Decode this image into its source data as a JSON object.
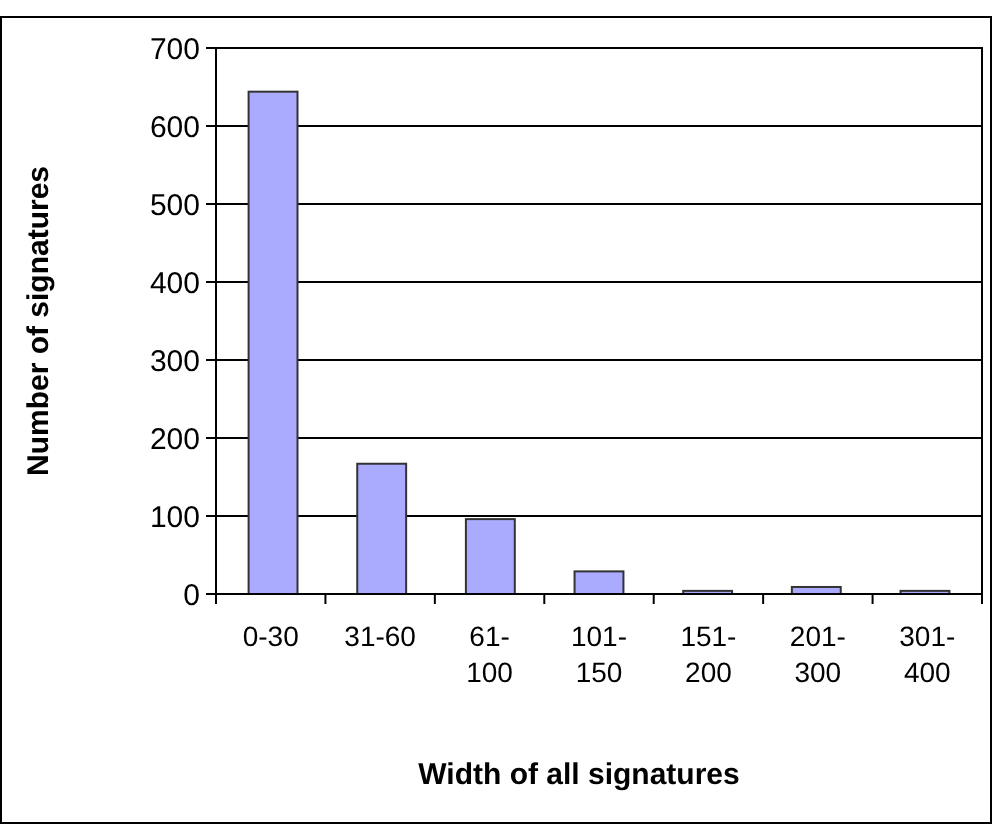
{
  "chart_data": {
    "type": "bar",
    "xlabel": "Width of all signatures",
    "ylabel": "Number of signatures",
    "categories": [
      "0-30",
      "31-60",
      "61-100",
      "101-150",
      "151-200",
      "201-300",
      "301-400"
    ],
    "values": [
      644,
      167,
      96,
      29,
      4,
      9,
      4
    ],
    "color": "#aaaaff",
    "ylim": [
      0,
      700
    ],
    "yticks": [
      0,
      100,
      200,
      300,
      400,
      500,
      600,
      700
    ],
    "grid": "y"
  }
}
